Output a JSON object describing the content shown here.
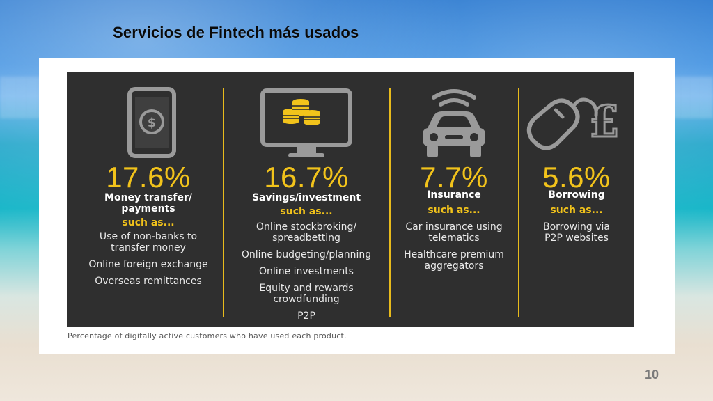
{
  "slide": {
    "title": "Servicios  de  Fintech  más usados",
    "caption": "Percentage of digitally active customers who have used each product.",
    "page_number": "10"
  },
  "colors": {
    "accent": "#f2c31b",
    "panel": "#2f2f2f",
    "text_light": "#f1f1f1"
  },
  "columns": [
    {
      "icon": "smartphone-dollar-icon",
      "percent": "17.6%",
      "category_line1": "Money transfer/",
      "category_line2": "payments",
      "such_as": "such as...",
      "items": [
        {
          "line1": "Use of non-banks to",
          "line2": "transfer money"
        },
        {
          "line1": "Online foreign exchange",
          "line2": ""
        },
        {
          "line1": "Overseas remittances",
          "line2": ""
        }
      ]
    },
    {
      "icon": "monitor-coins-icon",
      "percent": "16.7%",
      "category_line1": "Savings/investment",
      "category_line2": "",
      "such_as": "such as...",
      "items": [
        {
          "line1": "Online stockbroking/",
          "line2": "spreadbetting"
        },
        {
          "line1": "Online budgeting/planning",
          "line2": ""
        },
        {
          "line1": "Online investments",
          "line2": ""
        },
        {
          "line1": "Equity and rewards",
          "line2": "crowdfunding"
        },
        {
          "line1": "P2P",
          "line2": ""
        }
      ]
    },
    {
      "icon": "connected-car-icon",
      "percent": "7.7%",
      "category_line1": "Insurance",
      "category_line2": "",
      "such_as": "such as...",
      "items": [
        {
          "line1": "Car insurance using",
          "line2": "telematics"
        },
        {
          "line1": "Healthcare premium",
          "line2": "aggregators"
        }
      ]
    },
    {
      "icon": "mouse-pound-icon",
      "percent": "5.6%",
      "category_line1": "Borrowing",
      "category_line2": "",
      "such_as": "such as...",
      "items": [
        {
          "line1": "Borrowing via",
          "line2": "P2P websites"
        }
      ]
    }
  ]
}
